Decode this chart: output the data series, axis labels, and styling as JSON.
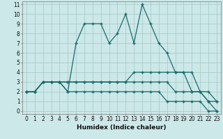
{
  "xlabel": "Humidex (Indice chaleur)",
  "bg_color": "#cce8e8",
  "grid_color": "#aacccc",
  "line_color": "#1a6b6b",
  "marker": "+",
  "xlim": [
    -0.5,
    23.5
  ],
  "ylim": [
    -0.3,
    11.3
  ],
  "xticks": [
    0,
    1,
    2,
    3,
    4,
    5,
    6,
    7,
    8,
    9,
    10,
    11,
    12,
    13,
    14,
    15,
    16,
    17,
    18,
    19,
    20,
    21,
    22,
    23
  ],
  "yticks": [
    0,
    1,
    2,
    3,
    4,
    5,
    6,
    7,
    8,
    9,
    10,
    11
  ],
  "series": [
    [
      2,
      2,
      3,
      3,
      3,
      2,
      7,
      9,
      9,
      9,
      7,
      8,
      10,
      7,
      11,
      9,
      7,
      6,
      4,
      4,
      2,
      2,
      1,
      0
    ],
    [
      2,
      2,
      3,
      3,
      3,
      3,
      3,
      3,
      3,
      3,
      3,
      3,
      3,
      4,
      4,
      4,
      4,
      4,
      4,
      4,
      4,
      2,
      2,
      1
    ],
    [
      2,
      2,
      3,
      3,
      3,
      3,
      3,
      3,
      3,
      3,
      3,
      3,
      3,
      3,
      3,
      3,
      3,
      3,
      2,
      2,
      2,
      2,
      1,
      1
    ],
    [
      2,
      2,
      3,
      3,
      3,
      2,
      2,
      2,
      2,
      2,
      2,
      2,
      2,
      2,
      2,
      2,
      2,
      1,
      1,
      1,
      1,
      1,
      0,
      0
    ]
  ],
  "xlabel_fontsize": 6.5,
  "tick_fontsize": 5.5,
  "linewidth": 0.9,
  "markersize": 3,
  "markeredgewidth": 1.0
}
